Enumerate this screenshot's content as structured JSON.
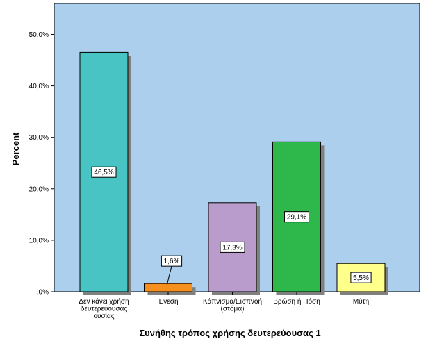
{
  "chart_data": {
    "type": "bar",
    "categories": [
      "Δεν κάνει χρήση δευτερεύουσας ουσίας",
      "Ένεση",
      "Κάπνισμα/Εισπνοή (στόμα)",
      "Βρώση ή Πόση",
      "Μύτη"
    ],
    "category_lines": [
      [
        "Δεν κάνει χρήση",
        "δευτερεύουσας",
        "ουσίας"
      ],
      [
        "Ένεση"
      ],
      [
        "Κάπνισμα/Εισπνοή",
        "(στόμα)"
      ],
      [
        "Βρώση ή Πόση"
      ],
      [
        "Μύτη"
      ]
    ],
    "values": [
      46.5,
      1.6,
      17.3,
      29.1,
      5.5
    ],
    "data_labels": [
      "46,5%",
      "1,6%",
      "17,3%",
      "29,1%",
      "5,5%"
    ],
    "bar_colors": [
      "#48c4c4",
      "#f5901f",
      "#b99ccb",
      "#2eb84c",
      "#ffff8c"
    ],
    "ylabel": "Percent",
    "xlabel": "Συνήθης τρόπος χρήσης δευτερεύουσας 1",
    "ylim": [
      0,
      50
    ],
    "yticks": [
      0,
      10,
      20,
      30,
      40,
      50
    ],
    "ytick_labels": [
      ",0%",
      "10,0%",
      "20,0%",
      "30,0%",
      "40,0%",
      "50,0%"
    ],
    "grid": false,
    "background_color": "#abcfec",
    "shadow_color": "#808080"
  }
}
